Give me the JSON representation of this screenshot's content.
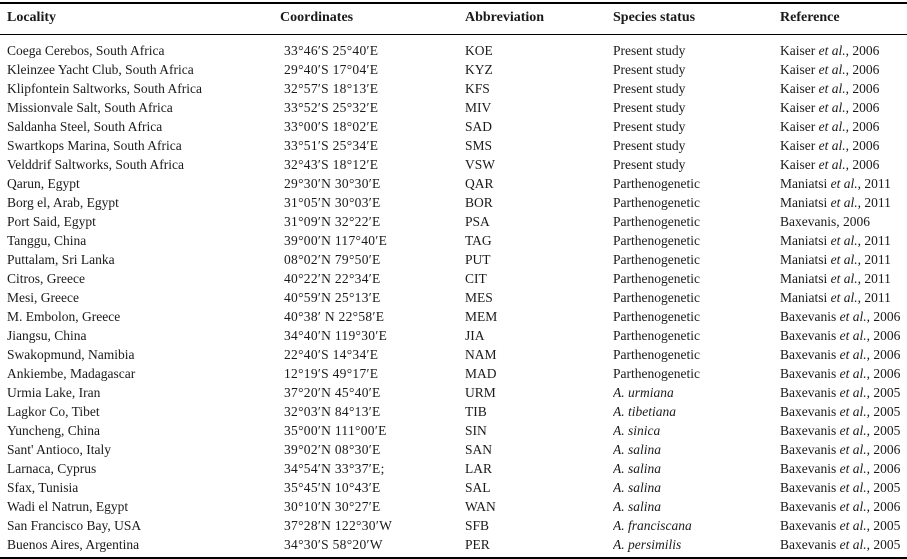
{
  "colors": {
    "background": "#ffffff",
    "text": "#1a1a1a",
    "rule": "#000000"
  },
  "table": {
    "columns": [
      {
        "key": "locality",
        "label": "Locality"
      },
      {
        "key": "coordinates",
        "label": "Coordinates"
      },
      {
        "key": "abbreviation",
        "label": "Abbreviation"
      },
      {
        "key": "species_status",
        "label": "Species status"
      },
      {
        "key": "reference",
        "label": "Reference"
      }
    ],
    "rows": [
      {
        "locality": "Coega Cerebos, South Africa",
        "coordinates": "33°46′S 25°40′E",
        "abbreviation": "KOE",
        "species_status": "Present study",
        "species_italic": false,
        "ref_author": "Kaiser",
        "ref_etal": "et al.",
        "ref_year": "2006"
      },
      {
        "locality": "Kleinzee Yacht Club, South Africa",
        "coordinates": "29°40′S 17°04′E",
        "abbreviation": "KYZ",
        "species_status": "Present study",
        "species_italic": false,
        "ref_author": "Kaiser",
        "ref_etal": "et al.",
        "ref_year": "2006"
      },
      {
        "locality": "Klipfontein Saltworks, South Africa",
        "coordinates": "32°57′S 18°13′E",
        "abbreviation": "KFS",
        "species_status": "Present study",
        "species_italic": false,
        "ref_author": "Kaiser",
        "ref_etal": "et al.",
        "ref_year": "2006"
      },
      {
        "locality": "Missionvale Salt, South Africa",
        "coordinates": "33°52′S 25°32′E",
        "abbreviation": "MIV",
        "species_status": "Present study",
        "species_italic": false,
        "ref_author": "Kaiser",
        "ref_etal": "et al.",
        "ref_year": "2006"
      },
      {
        "locality": "Saldanha Steel, South Africa",
        "coordinates": "33°00′S 18°02′E",
        "abbreviation": "SAD",
        "species_status": "Present study",
        "species_italic": false,
        "ref_author": "Kaiser",
        "ref_etal": "et al.",
        "ref_year": "2006"
      },
      {
        "locality": "Swartkops Marina, South Africa",
        "coordinates": "33°51′S 25°34′E",
        "abbreviation": "SMS",
        "species_status": "Present study",
        "species_italic": false,
        "ref_author": "Kaiser",
        "ref_etal": "et al.",
        "ref_year": "2006"
      },
      {
        "locality": "Velddrif Saltworks, South Africa",
        "coordinates": "32°43′S 18°12′E",
        "abbreviation": "VSW",
        "species_status": "Present study",
        "species_italic": false,
        "ref_author": "Kaiser",
        "ref_etal": "et al.",
        "ref_year": "2006"
      },
      {
        "locality": "Qarun, Egypt",
        "coordinates": "29°30′N 30°30′E",
        "abbreviation": "QAR",
        "species_status": "Parthenogenetic",
        "species_italic": false,
        "ref_author": "Maniatsi",
        "ref_etal": "et al.",
        "ref_year": "2011"
      },
      {
        "locality": "Borg el, Arab, Egypt",
        "coordinates": "31°05′N 30°03′E",
        "abbreviation": "BOR",
        "species_status": "Parthenogenetic",
        "species_italic": false,
        "ref_author": "Maniatsi",
        "ref_etal": "et al.",
        "ref_year": "2011"
      },
      {
        "locality": "Port Said, Egypt",
        "coordinates": "31°09′N 32°22′E",
        "abbreviation": "PSA",
        "species_status": "Parthenogenetic",
        "species_italic": false,
        "ref_author": "Baxevanis",
        "ref_etal": "",
        "ref_year": "2006"
      },
      {
        "locality": "Tanggu, China",
        "coordinates": "39°00′N 117°40′E",
        "abbreviation": "TAG",
        "species_status": "Parthenogenetic",
        "species_italic": false,
        "ref_author": "Maniatsi",
        "ref_etal": "et al.",
        "ref_year": "2011"
      },
      {
        "locality": "Puttalam, Sri Lanka",
        "coordinates": "08°02′N 79°50′E",
        "abbreviation": "PUT",
        "species_status": "Parthenogenetic",
        "species_italic": false,
        "ref_author": "Maniatsi",
        "ref_etal": "et al.",
        "ref_year": "2011"
      },
      {
        "locality": "Citros, Greece",
        "coordinates": "40°22′N 22°34′E",
        "abbreviation": "CIT",
        "species_status": "Parthenogenetic",
        "species_italic": false,
        "ref_author": "Maniatsi",
        "ref_etal": "et al.",
        "ref_year": "2011"
      },
      {
        "locality": "Mesi, Greece",
        "coordinates": "40°59′N 25°13′E",
        "abbreviation": "MES",
        "species_status": "Parthenogenetic",
        "species_italic": false,
        "ref_author": "Maniatsi",
        "ref_etal": "et al.",
        "ref_year": "2011"
      },
      {
        "locality": "M. Embolon, Greece",
        "coordinates": "40°38′ N 22°58′E",
        "abbreviation": "MEM",
        "species_status": "Parthenogenetic",
        "species_italic": false,
        "ref_author": "Baxevanis",
        "ref_etal": "et al.",
        "ref_year": "2006"
      },
      {
        "locality": "Jiangsu, China",
        "coordinates": "34°40′N 119°30′E",
        "abbreviation": "JIA",
        "species_status": "Parthenogenetic",
        "species_italic": false,
        "ref_author": "Baxevanis",
        "ref_etal": "et al.",
        "ref_year": "2006"
      },
      {
        "locality": "Swakopmund, Namibia",
        "coordinates": "22°40′S 14°34′E",
        "abbreviation": "NAM",
        "species_status": "Parthenogenetic",
        "species_italic": false,
        "ref_author": "Baxevanis",
        "ref_etal": "et al.",
        "ref_year": "2006"
      },
      {
        "locality": "Ankiembe, Madagascar",
        "coordinates": "12°19′S 49°17′E",
        "abbreviation": "MAD",
        "species_status": "Parthenogenetic",
        "species_italic": false,
        "ref_author": "Baxevanis",
        "ref_etal": "et al.",
        "ref_year": "2006"
      },
      {
        "locality": "Urmia Lake, Iran",
        "coordinates": "37°20′N 45°40′E",
        "abbreviation": "URM",
        "species_status": "A. urmiana",
        "species_italic": true,
        "ref_author": "Baxevanis",
        "ref_etal": "et al.",
        "ref_year": "2005"
      },
      {
        "locality": "Lagkor Co, Tibet",
        "coordinates": "32°03′N 84°13′E",
        "abbreviation": "TIB",
        "species_status": "A. tibetiana",
        "species_italic": true,
        "ref_author": "Baxevanis",
        "ref_etal": "et al.",
        "ref_year": "2005"
      },
      {
        "locality": "Yuncheng, China",
        "coordinates": "35°00′N 111°00′E",
        "abbreviation": "SIN",
        "species_status": "A. sinica",
        "species_italic": true,
        "ref_author": "Baxevanis",
        "ref_etal": "et al.",
        "ref_year": "2005"
      },
      {
        "locality": "Sant' Antioco, Italy",
        "coordinates": "39°02′N 08°30′E",
        "abbreviation": "SAN",
        "species_status": "A. salina",
        "species_italic": true,
        "ref_author": "Baxevanis",
        "ref_etal": "et al.",
        "ref_year": "2006"
      },
      {
        "locality": "Larnaca, Cyprus",
        "coordinates": "34°54′N 33°37′E;",
        "abbreviation": "LAR",
        "species_status": "A. salina",
        "species_italic": true,
        "ref_author": "Baxevanis",
        "ref_etal": "et al.",
        "ref_year": "2006"
      },
      {
        "locality": "Sfax, Tunisia",
        "coordinates": "35°45′N 10°43′E",
        "abbreviation": "SAL",
        "species_status": "A. salina",
        "species_italic": true,
        "ref_author": "Baxevanis",
        "ref_etal": "et al.",
        "ref_year": "2005"
      },
      {
        "locality": "Wadi el Natrun, Egypt",
        "coordinates": "30°10′N 30°27′E",
        "abbreviation": "WAN",
        "species_status": "A. salina",
        "species_italic": true,
        "ref_author": "Baxevanis",
        "ref_etal": "et al.",
        "ref_year": "2006"
      },
      {
        "locality": "San Francisco Bay, USA",
        "coordinates": "37°28′N 122°30′W",
        "abbreviation": "SFB",
        "species_status": "A. franciscana",
        "species_italic": true,
        "ref_author": "Baxevanis",
        "ref_etal": "et al.",
        "ref_year": "2005"
      },
      {
        "locality": "Buenos Aires, Argentina",
        "coordinates": "34°30′S 58°20′W",
        "abbreviation": "PER",
        "species_status": "A. persimilis",
        "species_italic": true,
        "ref_author": "Baxevanis",
        "ref_etal": "et al.",
        "ref_year": "2005"
      }
    ]
  }
}
